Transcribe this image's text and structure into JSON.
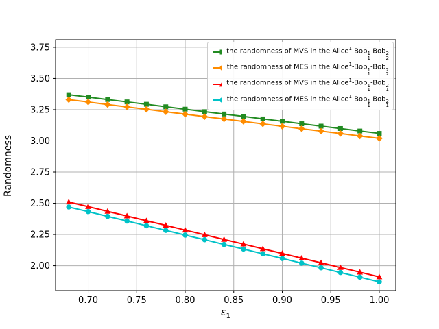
{
  "figure": {
    "background": "#ffffff",
    "grid_color": "#b0b0b0",
    "spine_color": "#000000",
    "legend_border_color": "#cccccc"
  },
  "chart_data": {
    "type": "line",
    "title": "",
    "xlabel": "ε1",
    "xlabel_parts": {
      "text": "ε",
      "sub": "1"
    },
    "ylabel": "Randomness",
    "grid": true,
    "legend_position": "upper right",
    "xlim": [
      0.6664,
      1.017
    ],
    "ylim": [
      1.8,
      3.81
    ],
    "xticks": [
      0.7,
      0.75,
      0.8,
      0.85,
      0.9,
      0.95,
      1.0
    ],
    "xtick_labels": [
      "0.70",
      "0.75",
      "0.80",
      "0.85",
      "0.90",
      "0.95",
      "1.00"
    ],
    "yticks": [
      2.0,
      2.25,
      2.5,
      2.75,
      3.0,
      3.25,
      3.5,
      3.75
    ],
    "ytick_labels": [
      "2.00",
      "2.25",
      "2.50",
      "2.75",
      "3.00",
      "3.25",
      "3.50",
      "3.75"
    ],
    "x": [
      0.68,
      0.7,
      0.72,
      0.74,
      0.76,
      0.78,
      0.8,
      0.82,
      0.84,
      0.86,
      0.88,
      0.9,
      0.92,
      0.94,
      0.96,
      0.98,
      1.0
    ],
    "series": [
      {
        "name": "the randomness of MVS in the Alice^1-Bob_1^1-Bob_2^2",
        "label_parts": [
          {
            "text": "the randomness of MVS in the Alice"
          },
          {
            "sup": "1"
          },
          {
            "text": "-Bob"
          },
          {
            "stack": [
              "1",
              "1"
            ]
          },
          {
            "text": "-Bob"
          },
          {
            "stack": [
              "2",
              "2"
            ]
          }
        ],
        "color": "#228B22",
        "marker": "square",
        "values": [
          3.37,
          3.351,
          3.331,
          3.312,
          3.293,
          3.273,
          3.254,
          3.234,
          3.215,
          3.196,
          3.176,
          3.157,
          3.137,
          3.118,
          3.099,
          3.079,
          3.06
        ]
      },
      {
        "name": "the randomness of MES in the Alice^1-Bob_1^1-Bob_2^2",
        "label_parts": [
          {
            "text": "the randomness of MES in the Alice"
          },
          {
            "sup": "1"
          },
          {
            "text": "-Bob"
          },
          {
            "stack": [
              "1",
              "1"
            ]
          },
          {
            "text": "-Bob"
          },
          {
            "stack": [
              "2",
              "2"
            ]
          }
        ],
        "color": "#FF8C00",
        "marker": "diamond",
        "values": [
          3.33,
          3.311,
          3.291,
          3.272,
          3.253,
          3.233,
          3.214,
          3.194,
          3.175,
          3.156,
          3.136,
          3.117,
          3.097,
          3.078,
          3.059,
          3.039,
          3.02
        ]
      },
      {
        "name": "the randomness of MVS in the Alice^1-Bob_1^1-Bob_1^2",
        "label_parts": [
          {
            "text": "the randomness of MVS in the Alice"
          },
          {
            "sup": "1"
          },
          {
            "text": "-Bob"
          },
          {
            "stack": [
              "1",
              "1"
            ]
          },
          {
            "text": "-Bob"
          },
          {
            "stack": [
              "2",
              "1"
            ]
          }
        ],
        "color": "#FF0000",
        "marker": "triangle-up",
        "values": [
          2.51,
          2.473,
          2.435,
          2.398,
          2.36,
          2.323,
          2.285,
          2.248,
          2.21,
          2.173,
          2.135,
          2.098,
          2.06,
          2.023,
          1.985,
          1.948,
          1.91
        ]
      },
      {
        "name": "the randomness of MES in the Alice^1-Bob_1^1-Bob_1^2",
        "label_parts": [
          {
            "text": "the randomness of MES in the Alice"
          },
          {
            "sup": "1"
          },
          {
            "text": "-Bob"
          },
          {
            "stack": [
              "1",
              "1"
            ]
          },
          {
            "text": "-Bob"
          },
          {
            "stack": [
              "2",
              "1"
            ]
          }
        ],
        "color": "#00C2C8",
        "marker": "circle",
        "values": [
          2.47,
          2.433,
          2.395,
          2.358,
          2.32,
          2.283,
          2.245,
          2.208,
          2.17,
          2.133,
          2.095,
          2.058,
          2.02,
          1.983,
          1.945,
          1.908,
          1.87
        ]
      }
    ]
  }
}
